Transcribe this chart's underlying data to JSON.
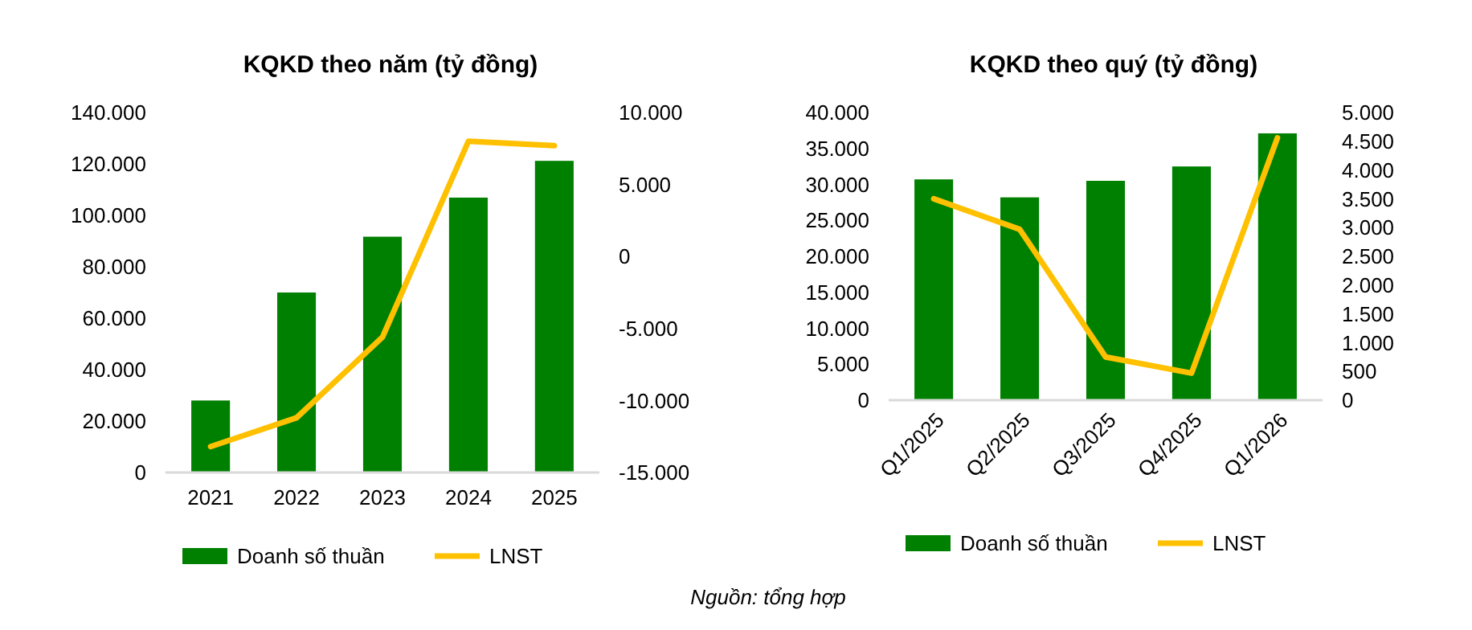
{
  "chart_data": [
    {
      "type": "bar",
      "title": "KQKD theo năm (tỷ đồng)",
      "categories": [
        "2021",
        "2022",
        "2023",
        "2024",
        "2025"
      ],
      "series": [
        {
          "name": "Doanh số thuần",
          "color": "#008000",
          "values": [
            28000,
            70000,
            91700,
            106900,
            121200
          ]
        },
        {
          "name": "LNST",
          "type": "line",
          "axis": "y2",
          "color": "#ffc000",
          "values": [
            -13200,
            -11200,
            -5600,
            8000,
            7700
          ]
        }
      ],
      "ylim": [
        0,
        140000
      ],
      "yticks": [
        {
          "value": 0,
          "label": "0"
        },
        {
          "value": 20000,
          "label": "20.000"
        },
        {
          "value": 40000,
          "label": "40.000"
        },
        {
          "value": 60000,
          "label": "60.000"
        },
        {
          "value": 80000,
          "label": "80.000"
        },
        {
          "value": 100000,
          "label": "100.000"
        },
        {
          "value": 120000,
          "label": "120.000"
        },
        {
          "value": 140000,
          "label": "140.000"
        }
      ],
      "y2lim": [
        -15000,
        10000
      ],
      "y2ticks": [
        {
          "value": -15000,
          "label": "-15.000"
        },
        {
          "value": -10000,
          "label": "-10.000"
        },
        {
          "value": -5000,
          "label": "-5.000"
        },
        {
          "value": 0,
          "label": "0"
        },
        {
          "value": 5000,
          "label": "5.000"
        },
        {
          "value": 10000,
          "label": "10.000"
        }
      ],
      "grid": false,
      "legend": "bottom",
      "marker": "none"
    },
    {
      "type": "bar",
      "title": "KQKD theo quý (tỷ đồng)",
      "categories": [
        "Q1/2025",
        "Q2/2025",
        "Q3/2025",
        "Q4/2025",
        "Q1/2026"
      ],
      "series": [
        {
          "name": "Doanh số thuần",
          "color": "#008000",
          "values": [
            30700,
            28200,
            30500,
            32500,
            37100
          ]
        },
        {
          "name": "LNST",
          "type": "line",
          "axis": "y2",
          "color": "#ffc000",
          "values": [
            3500,
            2970,
            750,
            470,
            4560
          ]
        }
      ],
      "ylim": [
        0,
        40000
      ],
      "yticks": [
        {
          "value": 0,
          "label": "0"
        },
        {
          "value": 5000,
          "label": "5.000"
        },
        {
          "value": 10000,
          "label": "10.000"
        },
        {
          "value": 15000,
          "label": "15.000"
        },
        {
          "value": 20000,
          "label": "20.000"
        },
        {
          "value": 25000,
          "label": "25.000"
        },
        {
          "value": 30000,
          "label": "30.000"
        },
        {
          "value": 35000,
          "label": "35.000"
        },
        {
          "value": 40000,
          "label": "40.000"
        }
      ],
      "y2lim": [
        0,
        5000
      ],
      "y2ticks": [
        {
          "value": 0,
          "label": "0"
        },
        {
          "value": 500,
          "label": "500"
        },
        {
          "value": 1000,
          "label": "1.000"
        },
        {
          "value": 1500,
          "label": "1.500"
        },
        {
          "value": 2000,
          "label": "2.000"
        },
        {
          "value": 2500,
          "label": "2.500"
        },
        {
          "value": 3000,
          "label": "3.000"
        },
        {
          "value": 3500,
          "label": "3.500"
        },
        {
          "value": 4000,
          "label": "4.000"
        },
        {
          "value": 4500,
          "label": "4.500"
        },
        {
          "value": 5000,
          "label": "5.000"
        }
      ],
      "grid": false,
      "legend": "bottom",
      "marker": "none",
      "annotations": [
        "Nguồn: tổng hợp"
      ]
    }
  ]
}
